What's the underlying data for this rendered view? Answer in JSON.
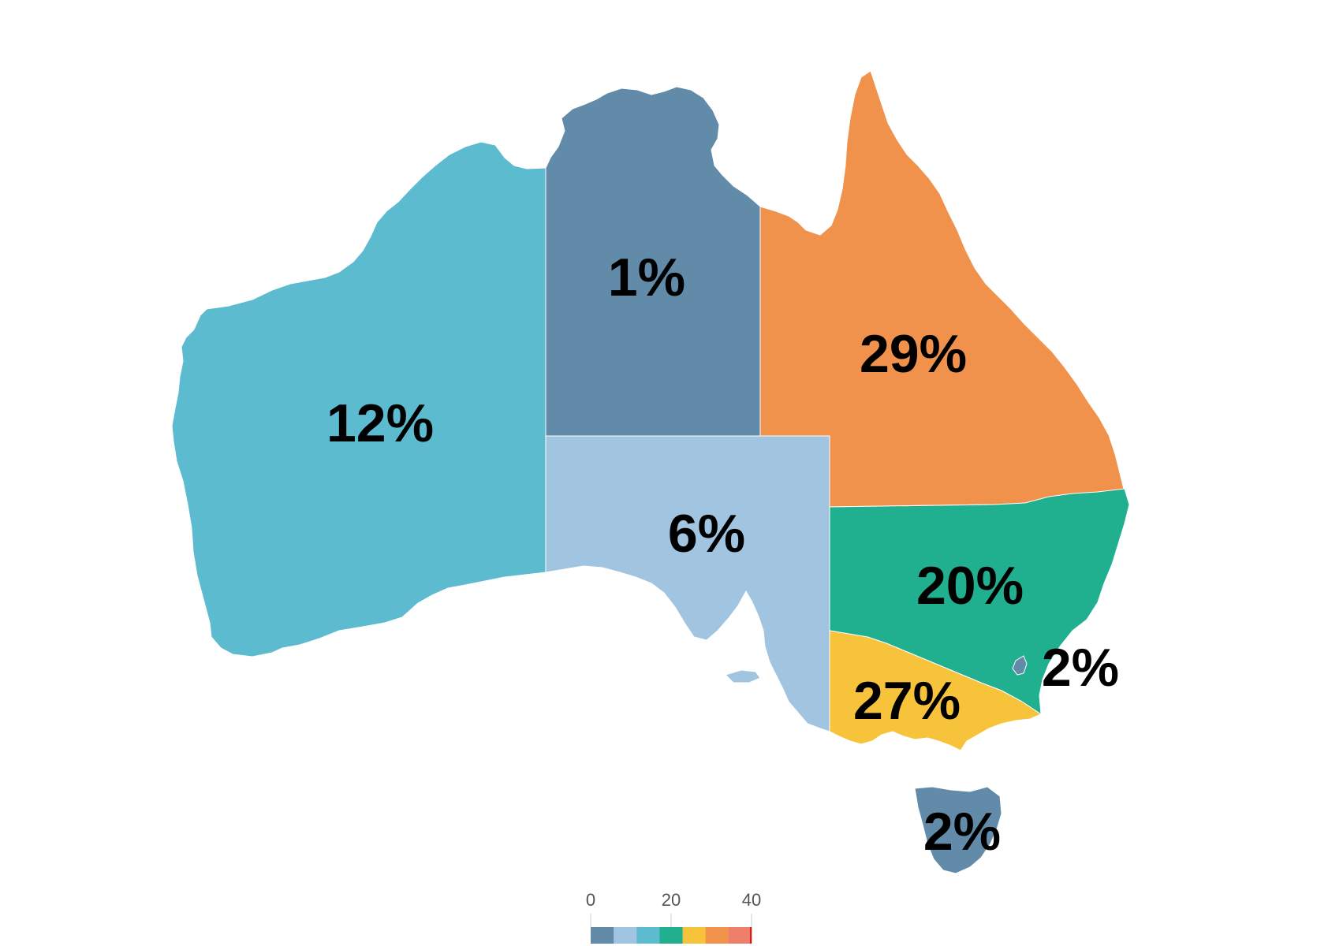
{
  "map": {
    "regions": [
      {
        "id": "wa",
        "name": "Western Australia",
        "label": "12%",
        "value": 12,
        "color": "#5dbbd0"
      },
      {
        "id": "nt",
        "name": "Northern Territory",
        "label": "1%",
        "value": 1,
        "color": "#628ba9"
      },
      {
        "id": "qld",
        "name": "Queensland",
        "label": "29%",
        "value": 29,
        "color": "#f0924b"
      },
      {
        "id": "sa",
        "name": "South Australia",
        "label": "6%",
        "value": 6,
        "color": "#a1c4e0"
      },
      {
        "id": "nsw",
        "name": "New South Wales",
        "label": "20%",
        "value": 20,
        "color": "#20b08f"
      },
      {
        "id": "act",
        "name": "Australian Capital Territory",
        "label": "2%",
        "value": 2,
        "color": "#628ba9"
      },
      {
        "id": "vic",
        "name": "Victoria",
        "label": "27%",
        "value": 27,
        "color": "#f7c33a"
      },
      {
        "id": "tas",
        "name": "Tasmania",
        "label": "2%",
        "value": 2,
        "color": "#628ba9"
      }
    ]
  },
  "legend": {
    "min": 0,
    "max": 40,
    "tick_labels": [
      "0",
      "20",
      "40"
    ],
    "colors": [
      "#628ba9",
      "#a1c4e0",
      "#5dbbd0",
      "#20b08f",
      "#f7c33a",
      "#f0924b",
      "#ef7f6a"
    ],
    "end_marker_color": "#d7191c"
  }
}
